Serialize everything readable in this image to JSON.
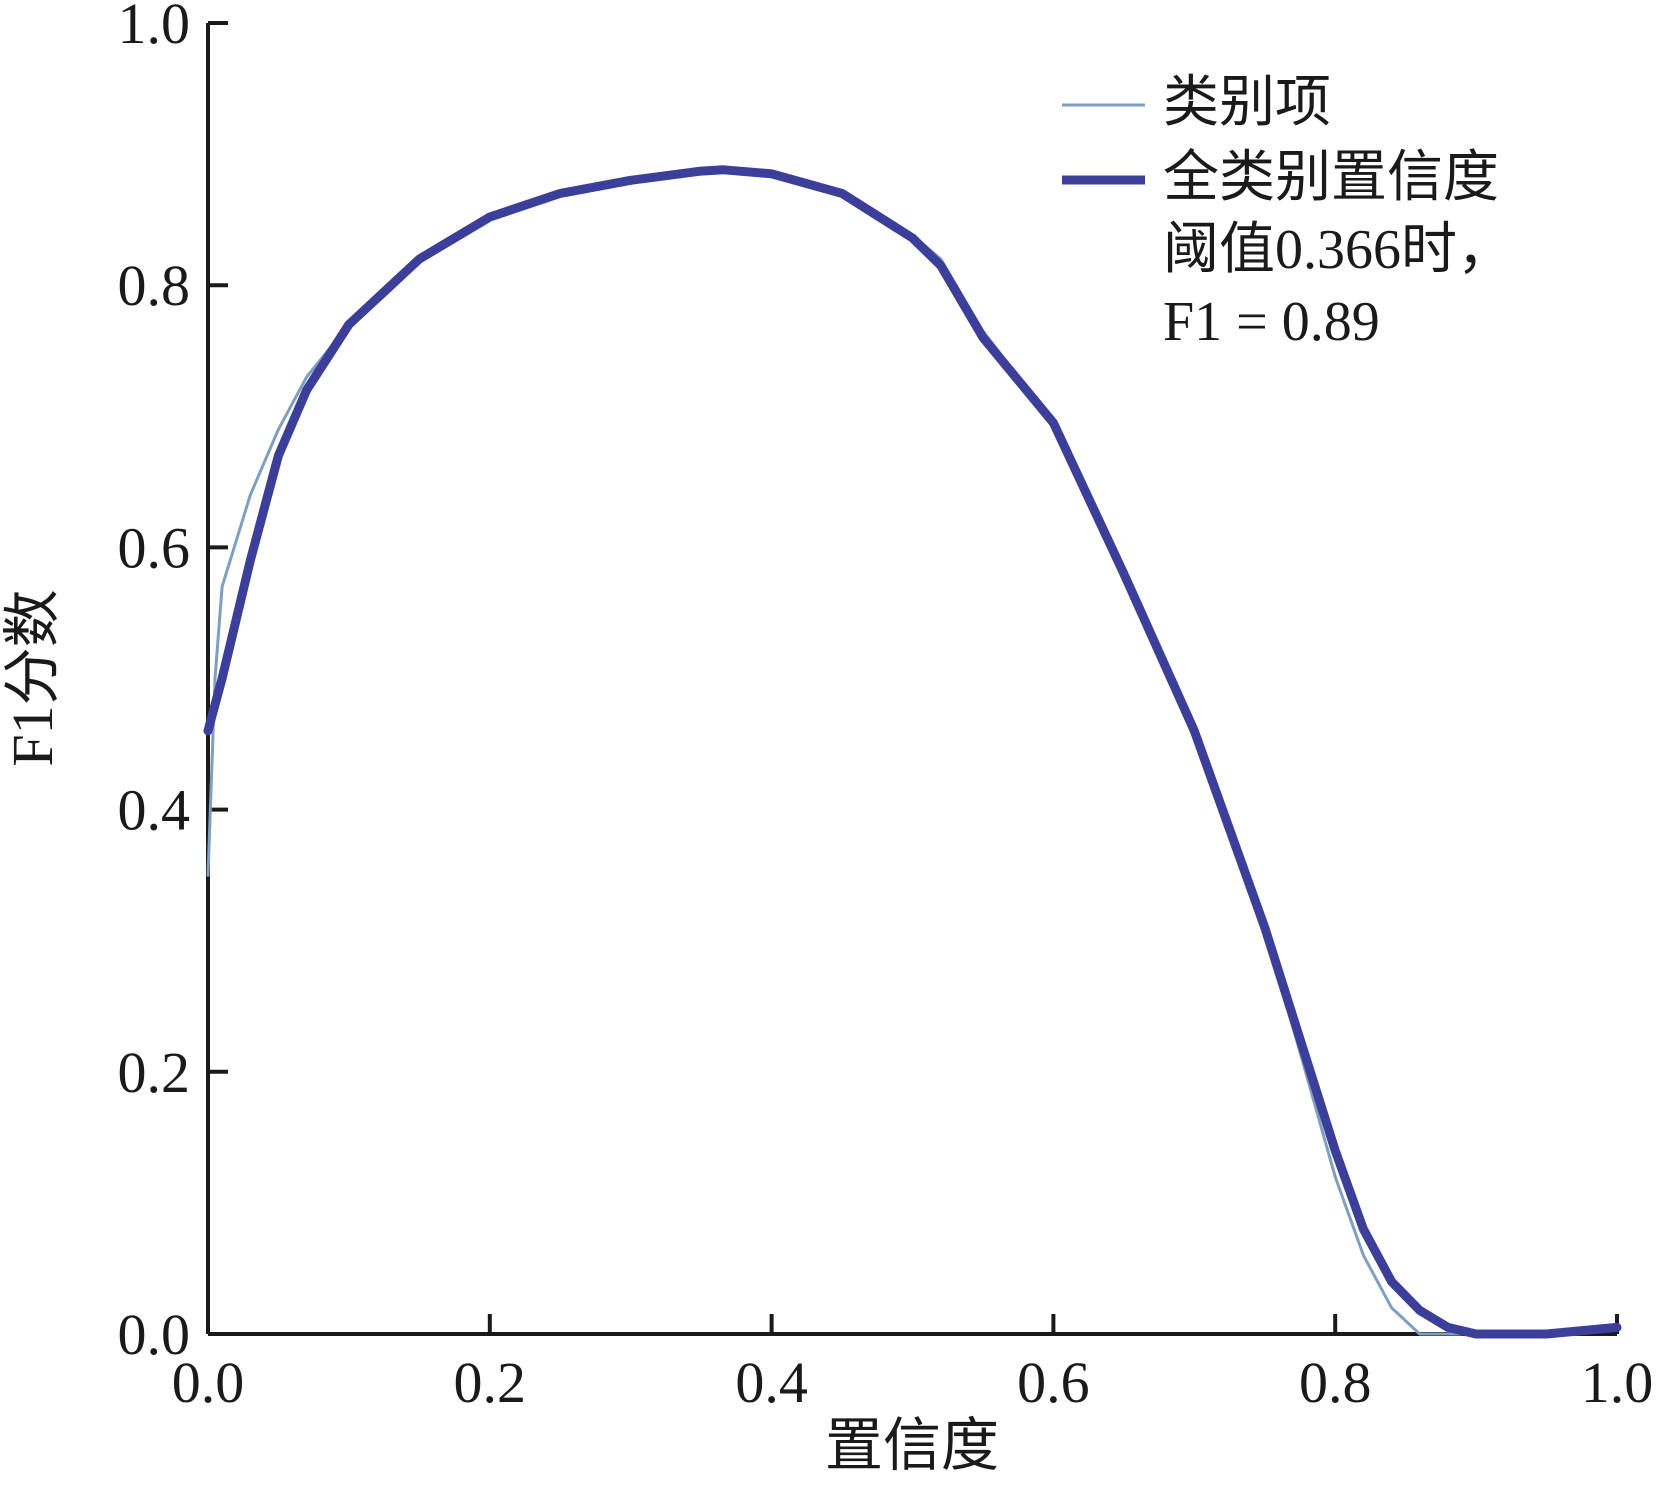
{
  "chart_data": {
    "type": "line",
    "xlabel": "置信度",
    "ylabel": "F1分数",
    "x": [
      0,
      0.005,
      0.01,
      0.03,
      0.05,
      0.07,
      0.1,
      0.15,
      0.2,
      0.25,
      0.3,
      0.35,
      0.366,
      0.4,
      0.45,
      0.5,
      0.52,
      0.55,
      0.6,
      0.65,
      0.7,
      0.75,
      0.8,
      0.82,
      0.84,
      0.86,
      0.88,
      0.9,
      0.95,
      1.0
    ],
    "series": [
      {
        "name": "类别项",
        "color": "#7f9fc2",
        "width": 3,
        "values": [
          0.35,
          0.5,
          0.57,
          0.64,
          0.69,
          0.73,
          0.77,
          0.82,
          0.852,
          0.87,
          0.88,
          0.887,
          0.888,
          0.885,
          0.87,
          0.838,
          0.82,
          0.765,
          0.695,
          0.58,
          0.46,
          0.31,
          0.12,
          0.06,
          0.02,
          0.0,
          0.0,
          0.0,
          0.0,
          0.005
        ]
      },
      {
        "name": "全类别置信度\n阈值0.366时，\nF1 = 0.89",
        "color": "#3b3f99",
        "width": 9,
        "values": [
          0.46,
          0.48,
          0.5,
          0.59,
          0.67,
          0.72,
          0.77,
          0.82,
          0.852,
          0.87,
          0.88,
          0.887,
          0.888,
          0.885,
          0.87,
          0.836,
          0.815,
          0.76,
          0.695,
          0.58,
          0.46,
          0.31,
          0.14,
          0.08,
          0.04,
          0.018,
          0.005,
          0.0,
          0.0,
          0.005
        ]
      }
    ],
    "xlim": [
      0,
      1.0
    ],
    "ylim": [
      0,
      1.0
    ],
    "xticks": [
      {
        "value": 0,
        "label": "0.0"
      },
      0.2,
      0.4,
      0.6,
      0.8,
      {
        "value": 1.0,
        "label": "1.0"
      }
    ],
    "yticks": [
      {
        "value": 0,
        "label": "0.0"
      },
      0.2,
      0.4,
      0.6,
      0.8,
      {
        "value": 1.0,
        "label": "1.0"
      }
    ],
    "grid": false,
    "legend": "upper right"
  }
}
